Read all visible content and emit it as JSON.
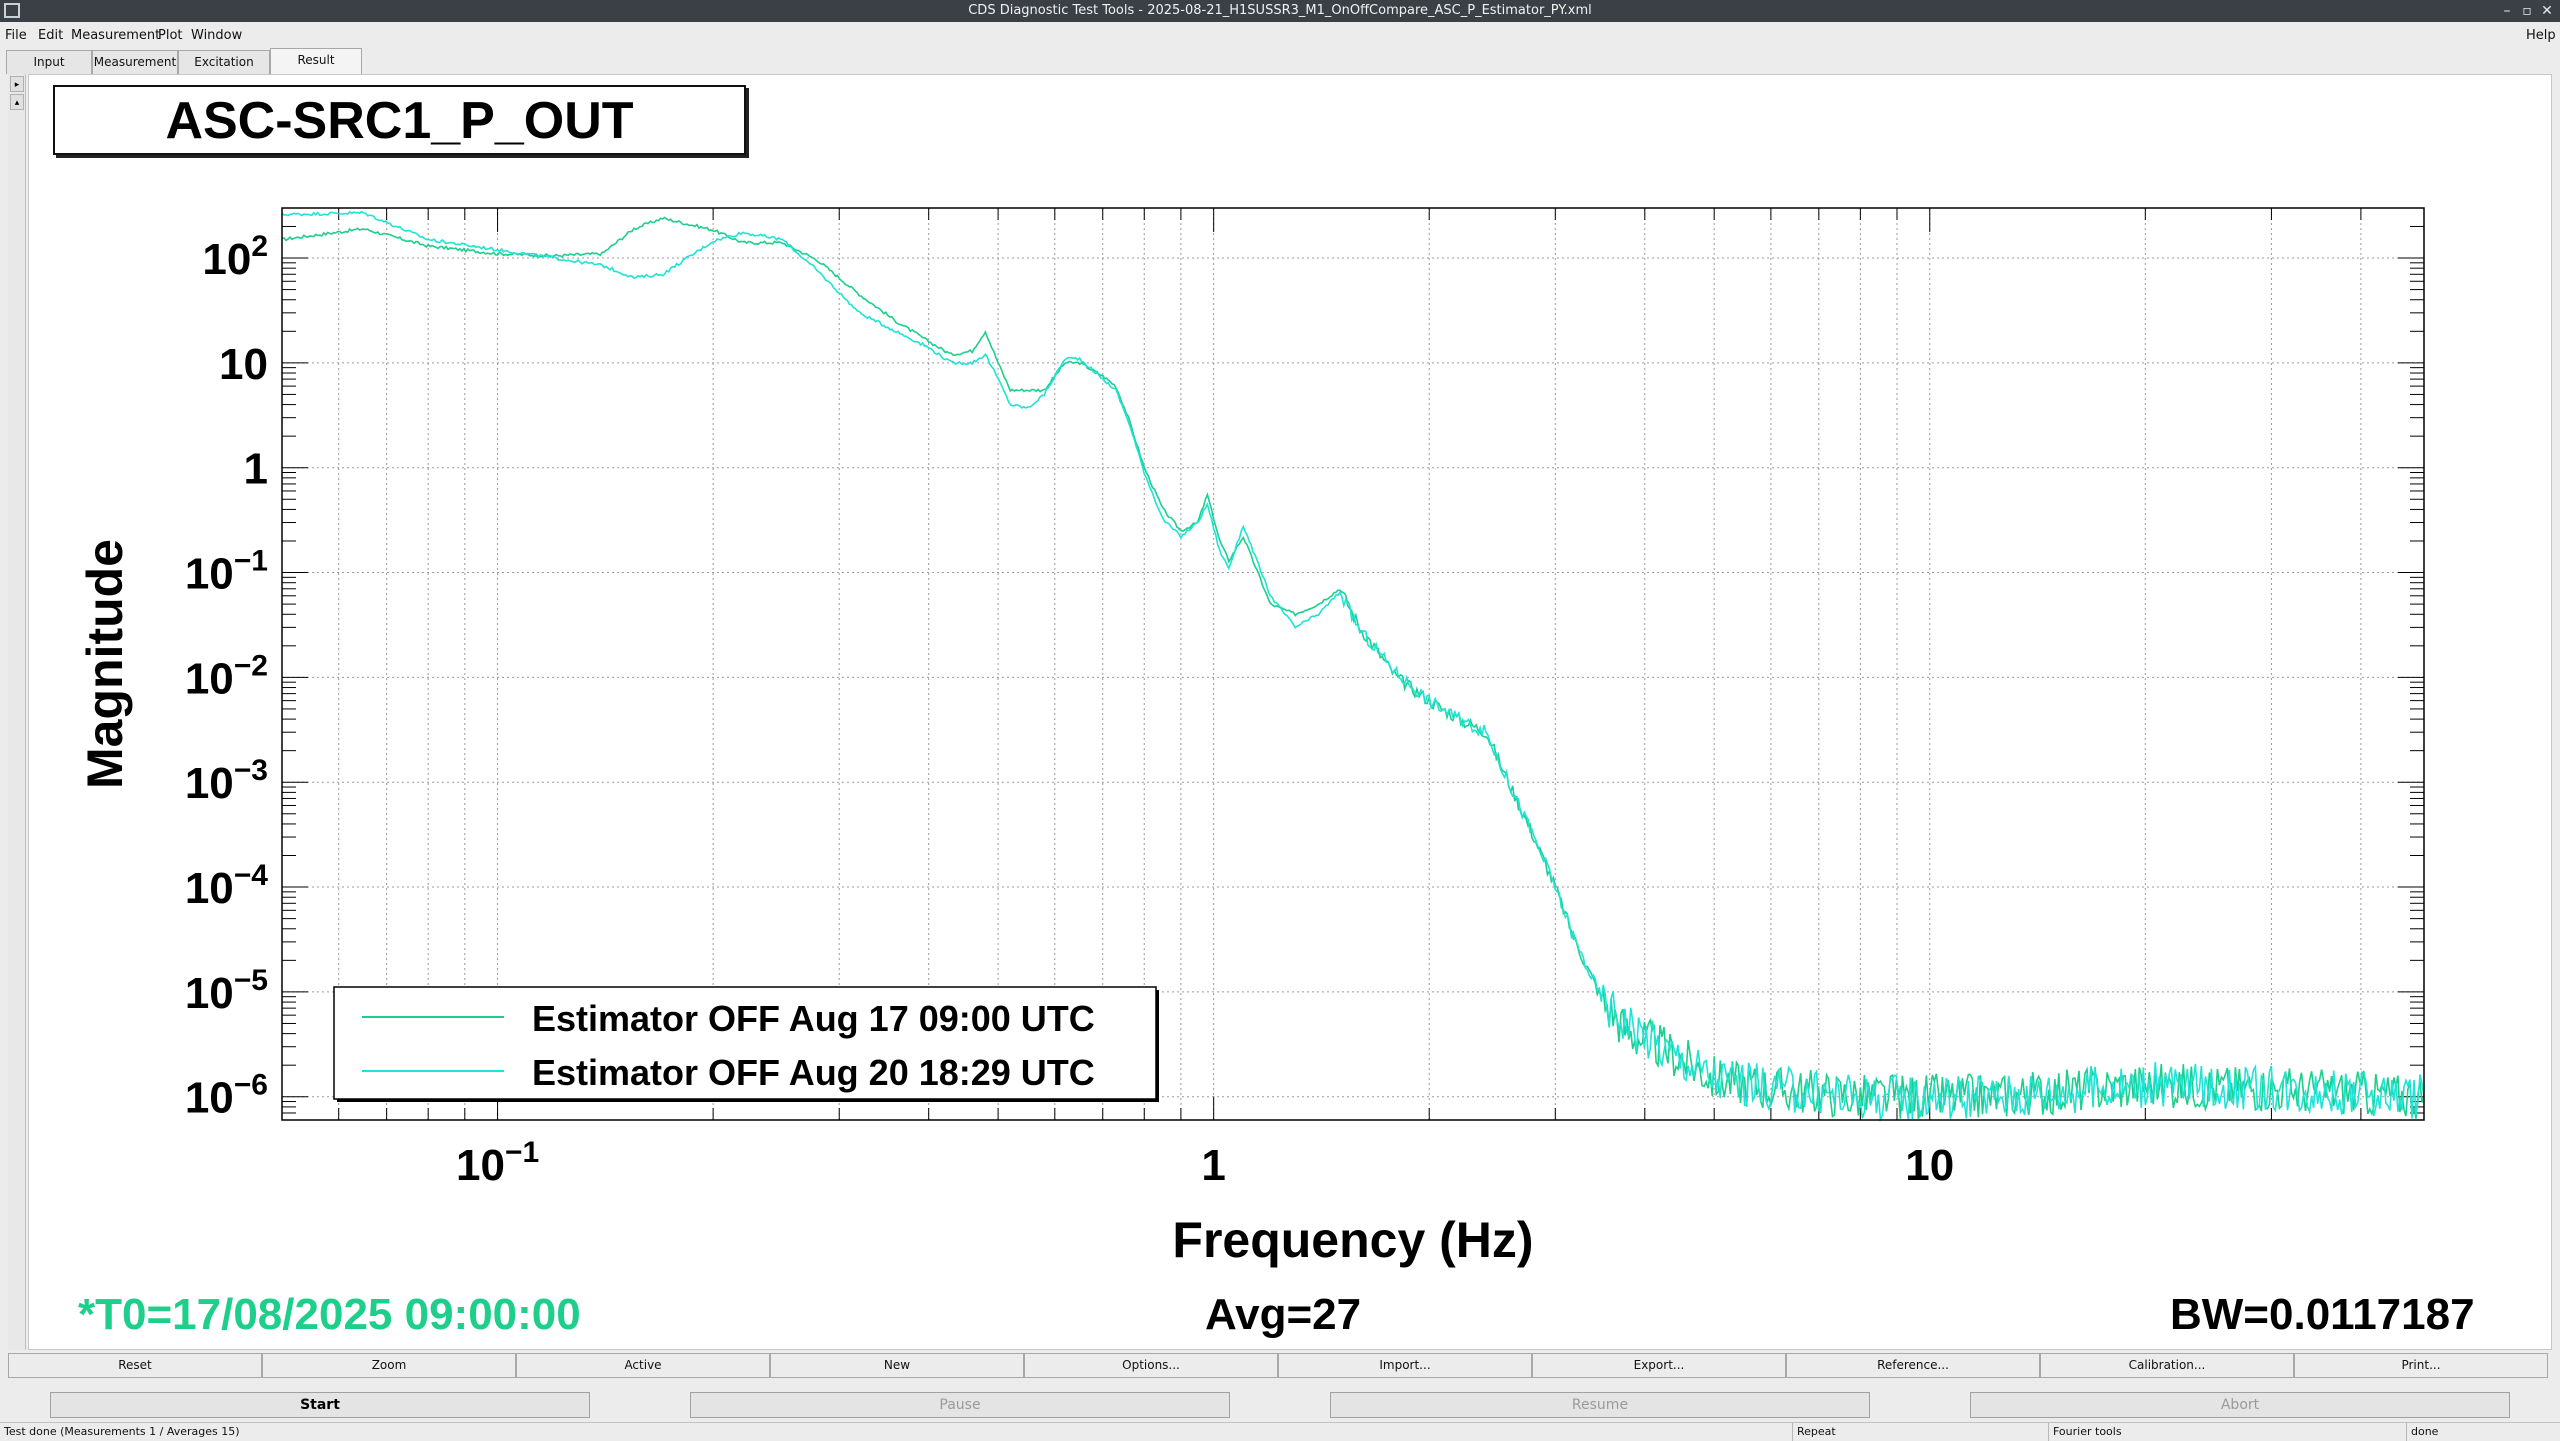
{
  "window": {
    "title": "CDS Diagnostic Test Tools - 2025-08-21_H1SUSSR3_M1_OnOffCompare_ASC_P_Estimator_PY.xml",
    "controls": [
      "–",
      "▫",
      "✕"
    ]
  },
  "menubar": {
    "items": [
      "File",
      "Edit",
      "Measurement",
      "Plot",
      "Window"
    ],
    "help": "Help"
  },
  "tabs": [
    "Input",
    "Measurement",
    "Excitation",
    "Result"
  ],
  "active_tab": "Result",
  "plot": {
    "title": "ASC-SRC1_P_OUT",
    "t0": "*T0=17/08/2025 09:00:00",
    "avg": "Avg=27",
    "bw": "BW=0.0117187",
    "colors": {
      "trace1": "#1ccf8c",
      "trace2": "#1ee3d6",
      "status_green": "#1ecf8c"
    }
  },
  "chart_data": {
    "type": "line",
    "xlabel": "Frequency (Hz)",
    "ylabel": "Magnitude",
    "xscale": "log",
    "yscale": "log",
    "xlim": [
      0.05,
      49
    ],
    "ylim": [
      6e-07,
      300
    ],
    "grid": true,
    "legend_position": "bottom-left",
    "x_ticks": [
      {
        "value": 0.1,
        "base": "10",
        "exp": "−1"
      },
      {
        "value": 1,
        "base": "1",
        "exp": ""
      },
      {
        "value": 10,
        "base": "10",
        "exp": ""
      }
    ],
    "y_ticks": [
      {
        "value": 100,
        "base": "10",
        "exp": "2"
      },
      {
        "value": 10,
        "base": "10",
        "exp": ""
      },
      {
        "value": 1,
        "base": "1",
        "exp": ""
      },
      {
        "value": 0.1,
        "base": "10",
        "exp": "−1"
      },
      {
        "value": 0.01,
        "base": "10",
        "exp": "−2"
      },
      {
        "value": 0.001,
        "base": "10",
        "exp": "−3"
      },
      {
        "value": 0.0001,
        "base": "10",
        "exp": "−4"
      },
      {
        "value": 1e-05,
        "base": "10",
        "exp": "−5"
      },
      {
        "value": 1e-06,
        "base": "10",
        "exp": "−6"
      }
    ],
    "series": [
      {
        "name": "Estimator OFF Aug 17 09:00 UTC",
        "color": "#1ccf8c",
        "x": [
          0.05,
          0.065,
          0.08,
          0.1,
          0.12,
          0.14,
          0.155,
          0.17,
          0.2,
          0.22,
          0.25,
          0.28,
          0.32,
          0.36,
          0.4,
          0.43,
          0.46,
          0.48,
          0.5,
          0.52,
          0.55,
          0.58,
          0.62,
          0.65,
          0.7,
          0.73,
          0.76,
          0.8,
          0.85,
          0.9,
          0.95,
          0.98,
          1.02,
          1.05,
          1.1,
          1.2,
          1.3,
          1.4,
          1.5,
          1.6,
          1.8,
          2.0,
          2.2,
          2.4,
          2.6,
          2.8,
          3.0,
          3.2,
          3.5,
          3.8,
          4.2,
          5.0,
          6.0,
          8.0,
          12,
          20,
          30,
          49
        ],
        "y": [
          150,
          190,
          130,
          110,
          105,
          110,
          190,
          240,
          185,
          140,
          140,
          95,
          45,
          25,
          16,
          12,
          13,
          20,
          10,
          5.5,
          5.5,
          5.5,
          10,
          10,
          7.5,
          6,
          3,
          1,
          0.4,
          0.25,
          0.3,
          0.55,
          0.2,
          0.13,
          0.22,
          0.05,
          0.04,
          0.05,
          0.07,
          0.03,
          0.01,
          0.006,
          0.004,
          0.003,
          0.0009,
          0.0003,
          0.0001,
          3e-05,
          8e-06,
          4e-06,
          3e-06,
          1.5e-06,
          1.2e-06,
          1e-06,
          1e-06,
          1.3e-06,
          1.2e-06,
          1e-06
        ]
      },
      {
        "name": "Estimator OFF Aug 20 18:29 UTC",
        "color": "#1ee3d6",
        "x": [
          0.05,
          0.065,
          0.08,
          0.1,
          0.12,
          0.14,
          0.155,
          0.17,
          0.2,
          0.22,
          0.25,
          0.28,
          0.32,
          0.36,
          0.4,
          0.43,
          0.46,
          0.48,
          0.5,
          0.52,
          0.55,
          0.58,
          0.62,
          0.65,
          0.7,
          0.73,
          0.76,
          0.8,
          0.85,
          0.9,
          0.95,
          0.98,
          1.02,
          1.05,
          1.1,
          1.2,
          1.3,
          1.4,
          1.5,
          1.6,
          1.8,
          2.0,
          2.2,
          2.4,
          2.6,
          2.8,
          3.0,
          3.2,
          3.5,
          3.8,
          4.2,
          5.0,
          6.0,
          8.0,
          12,
          20,
          30,
          49
        ],
        "y": [
          260,
          270,
          150,
          120,
          100,
          85,
          65,
          70,
          145,
          175,
          150,
          75,
          30,
          20,
          14,
          10,
          10,
          12,
          7,
          4,
          3.7,
          5,
          11,
          11,
          7,
          5.5,
          2.8,
          0.9,
          0.32,
          0.22,
          0.3,
          0.45,
          0.16,
          0.11,
          0.28,
          0.06,
          0.03,
          0.04,
          0.065,
          0.028,
          0.011,
          0.006,
          0.004,
          0.003,
          0.0009,
          0.0003,
          0.0001,
          3e-05,
          8e-06,
          5e-06,
          3e-06,
          1.5e-06,
          1.2e-06,
          1e-06,
          1e-06,
          1.3e-06,
          1.2e-06,
          1e-06
        ]
      }
    ]
  },
  "plot_buttons": [
    "Reset",
    "Zoom",
    "Active",
    "New",
    "Options...",
    "Import...",
    "Export...",
    "Reference...",
    "Calibration...",
    "Print..."
  ],
  "run_buttons": {
    "start": "Start",
    "pause": "Pause",
    "resume": "Resume",
    "abort": "Abort"
  },
  "statusbar": {
    "message": "Test done (Measurements 1 / Averages 15)",
    "mode": "Repeat",
    "tool": "Fourier tools",
    "state": "done"
  }
}
